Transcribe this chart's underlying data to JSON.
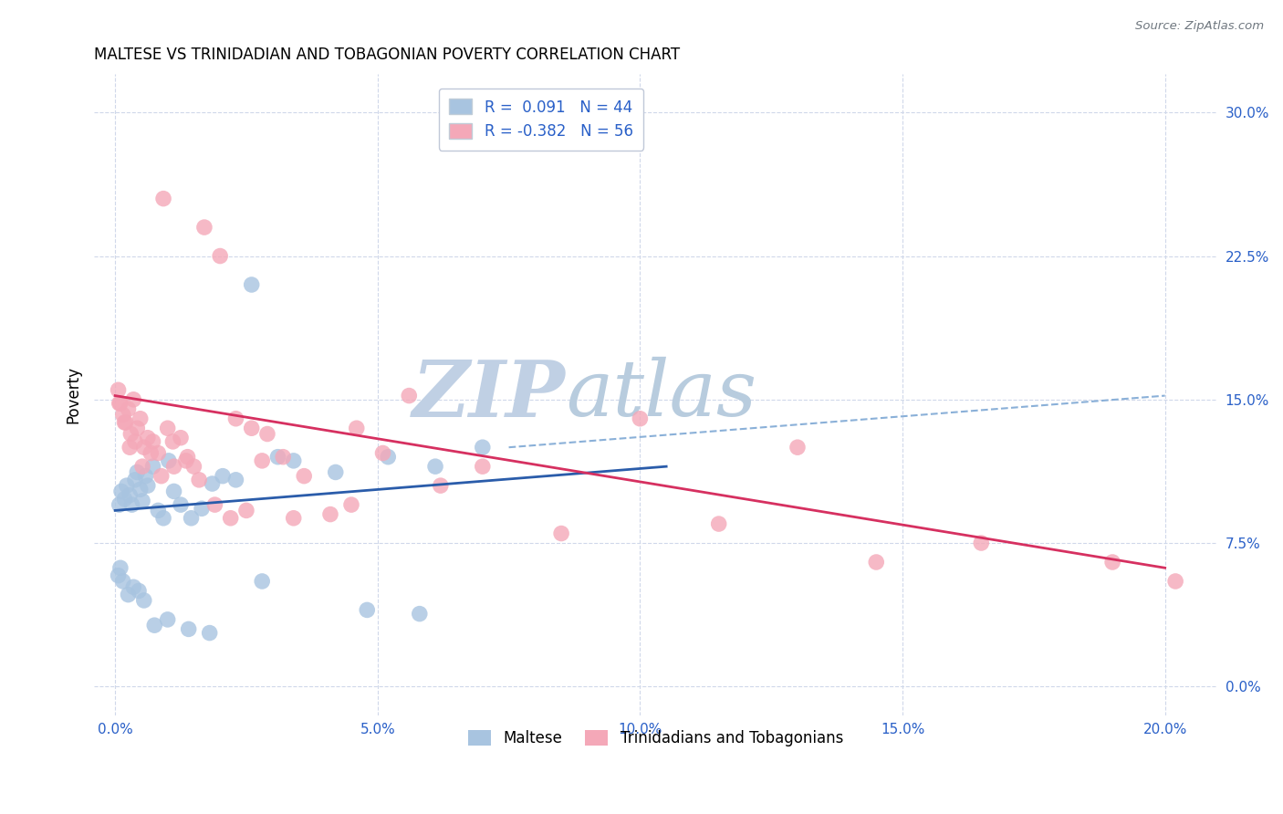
{
  "title": "MALTESE VS TRINIDADIAN AND TOBAGONIAN POVERTY CORRELATION CHART",
  "source": "Source: ZipAtlas.com",
  "xlabel_vals": [
    0.0,
    5.0,
    10.0,
    15.0,
    20.0
  ],
  "ylabel_vals": [
    0.0,
    7.5,
    15.0,
    22.5,
    30.0
  ],
  "xlim": [
    -0.4,
    21.0
  ],
  "ylim": [
    -1.5,
    32.0
  ],
  "maltese_R": 0.091,
  "maltese_N": 44,
  "tnt_R": -0.382,
  "tnt_N": 56,
  "maltese_color": "#a8c4e0",
  "tnt_color": "#f4a8b8",
  "maltese_line_color": "#2a5caa",
  "tnt_line_color": "#d63060",
  "dashed_line_color": "#8ab0d8",
  "grid_color": "#d0d8ea",
  "watermark_zip_color": "#c5d5e8",
  "watermark_atlas_color": "#b8cce0",
  "maltese_x": [
    0.08,
    0.12,
    0.18,
    0.22,
    0.28,
    0.32,
    0.38,
    0.42,
    0.48,
    0.52,
    0.58,
    0.62,
    0.72,
    0.82,
    0.92,
    1.02,
    1.12,
    1.25,
    1.45,
    1.65,
    1.85,
    2.05,
    2.3,
    2.6,
    3.1,
    3.4,
    4.2,
    5.2,
    6.1,
    7.0,
    0.06,
    0.1,
    0.15,
    0.25,
    0.35,
    0.45,
    0.55,
    0.75,
    1.0,
    1.4,
    1.8,
    2.8,
    4.8,
    5.8
  ],
  "maltese_y": [
    9.5,
    10.2,
    9.8,
    10.5,
    10.0,
    9.5,
    10.8,
    11.2,
    10.3,
    9.7,
    11.0,
    10.5,
    11.5,
    9.2,
    8.8,
    11.8,
    10.2,
    9.5,
    8.8,
    9.3,
    10.6,
    11.0,
    10.8,
    21.0,
    12.0,
    11.8,
    11.2,
    12.0,
    11.5,
    12.5,
    5.8,
    6.2,
    5.5,
    4.8,
    5.2,
    5.0,
    4.5,
    3.2,
    3.5,
    3.0,
    2.8,
    5.5,
    4.0,
    3.8
  ],
  "tnt_x": [
    0.06,
    0.1,
    0.15,
    0.2,
    0.25,
    0.3,
    0.35,
    0.42,
    0.48,
    0.55,
    0.62,
    0.72,
    0.82,
    0.92,
    1.0,
    1.12,
    1.25,
    1.38,
    1.5,
    1.7,
    2.0,
    2.3,
    2.6,
    2.9,
    3.2,
    3.6,
    4.1,
    4.6,
    5.1,
    5.6,
    6.2,
    7.0,
    8.5,
    10.0,
    11.5,
    13.0,
    14.5,
    16.5,
    19.0,
    20.2,
    0.08,
    0.18,
    0.28,
    0.38,
    0.52,
    0.68,
    0.88,
    1.1,
    1.35,
    1.6,
    1.9,
    2.2,
    2.5,
    2.8,
    3.4,
    4.5
  ],
  "tnt_y": [
    15.5,
    14.8,
    14.2,
    13.8,
    14.5,
    13.2,
    15.0,
    13.5,
    14.0,
    12.5,
    13.0,
    12.8,
    12.2,
    25.5,
    13.5,
    11.5,
    13.0,
    12.0,
    11.5,
    24.0,
    22.5,
    14.0,
    13.5,
    13.2,
    12.0,
    11.0,
    9.0,
    13.5,
    12.2,
    15.2,
    10.5,
    11.5,
    8.0,
    14.0,
    8.5,
    12.5,
    6.5,
    7.5,
    6.5,
    5.5,
    14.8,
    13.8,
    12.5,
    12.8,
    11.5,
    12.2,
    11.0,
    12.8,
    11.8,
    10.8,
    9.5,
    8.8,
    9.2,
    11.8,
    8.8,
    9.5
  ],
  "maltese_line_x0": 0.0,
  "maltese_line_y0": 9.2,
  "maltese_line_x1": 10.5,
  "maltese_line_y1": 11.5,
  "tnt_line_x0": 0.0,
  "tnt_line_y0": 15.2,
  "tnt_line_x1": 20.0,
  "tnt_line_y1": 6.2,
  "dash_line_x0": 7.5,
  "dash_line_y0": 12.5,
  "dash_line_x1": 20.0,
  "dash_line_y1": 15.2
}
